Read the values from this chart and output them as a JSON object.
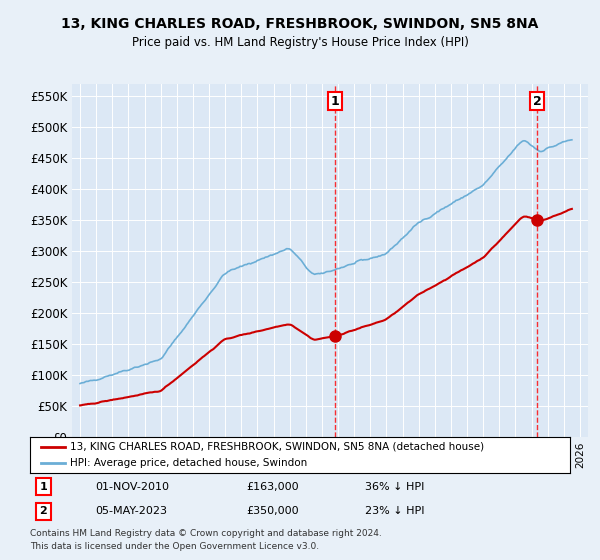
{
  "title": "13, KING CHARLES ROAD, FRESHBROOK, SWINDON, SN5 8NA",
  "subtitle": "Price paid vs. HM Land Registry's House Price Index (HPI)",
  "legend_label_red": "13, KING CHARLES ROAD, FRESHBROOK, SWINDON, SN5 8NA (detached house)",
  "legend_label_blue": "HPI: Average price, detached house, Swindon",
  "transactions": [
    {
      "num": 1,
      "date": "01-NOV-2010",
      "price": 163000,
      "year": 2010.83,
      "hpi_pct": "36% ↓ HPI"
    },
    {
      "num": 2,
      "date": "05-MAY-2023",
      "price": 350000,
      "year": 2023.34,
      "hpi_pct": "23% ↓ HPI"
    }
  ],
  "footer1": "Contains HM Land Registry data © Crown copyright and database right 2024.",
  "footer2": "This data is licensed under the Open Government Licence v3.0.",
  "hpi_color": "#6baed6",
  "price_color": "#cc0000",
  "background_color": "#e8f0f8",
  "plot_bg_color": "#dce8f5",
  "ylim": [
    0,
    570000
  ],
  "xlim_start": 1995.0,
  "xlim_end": 2026.5
}
